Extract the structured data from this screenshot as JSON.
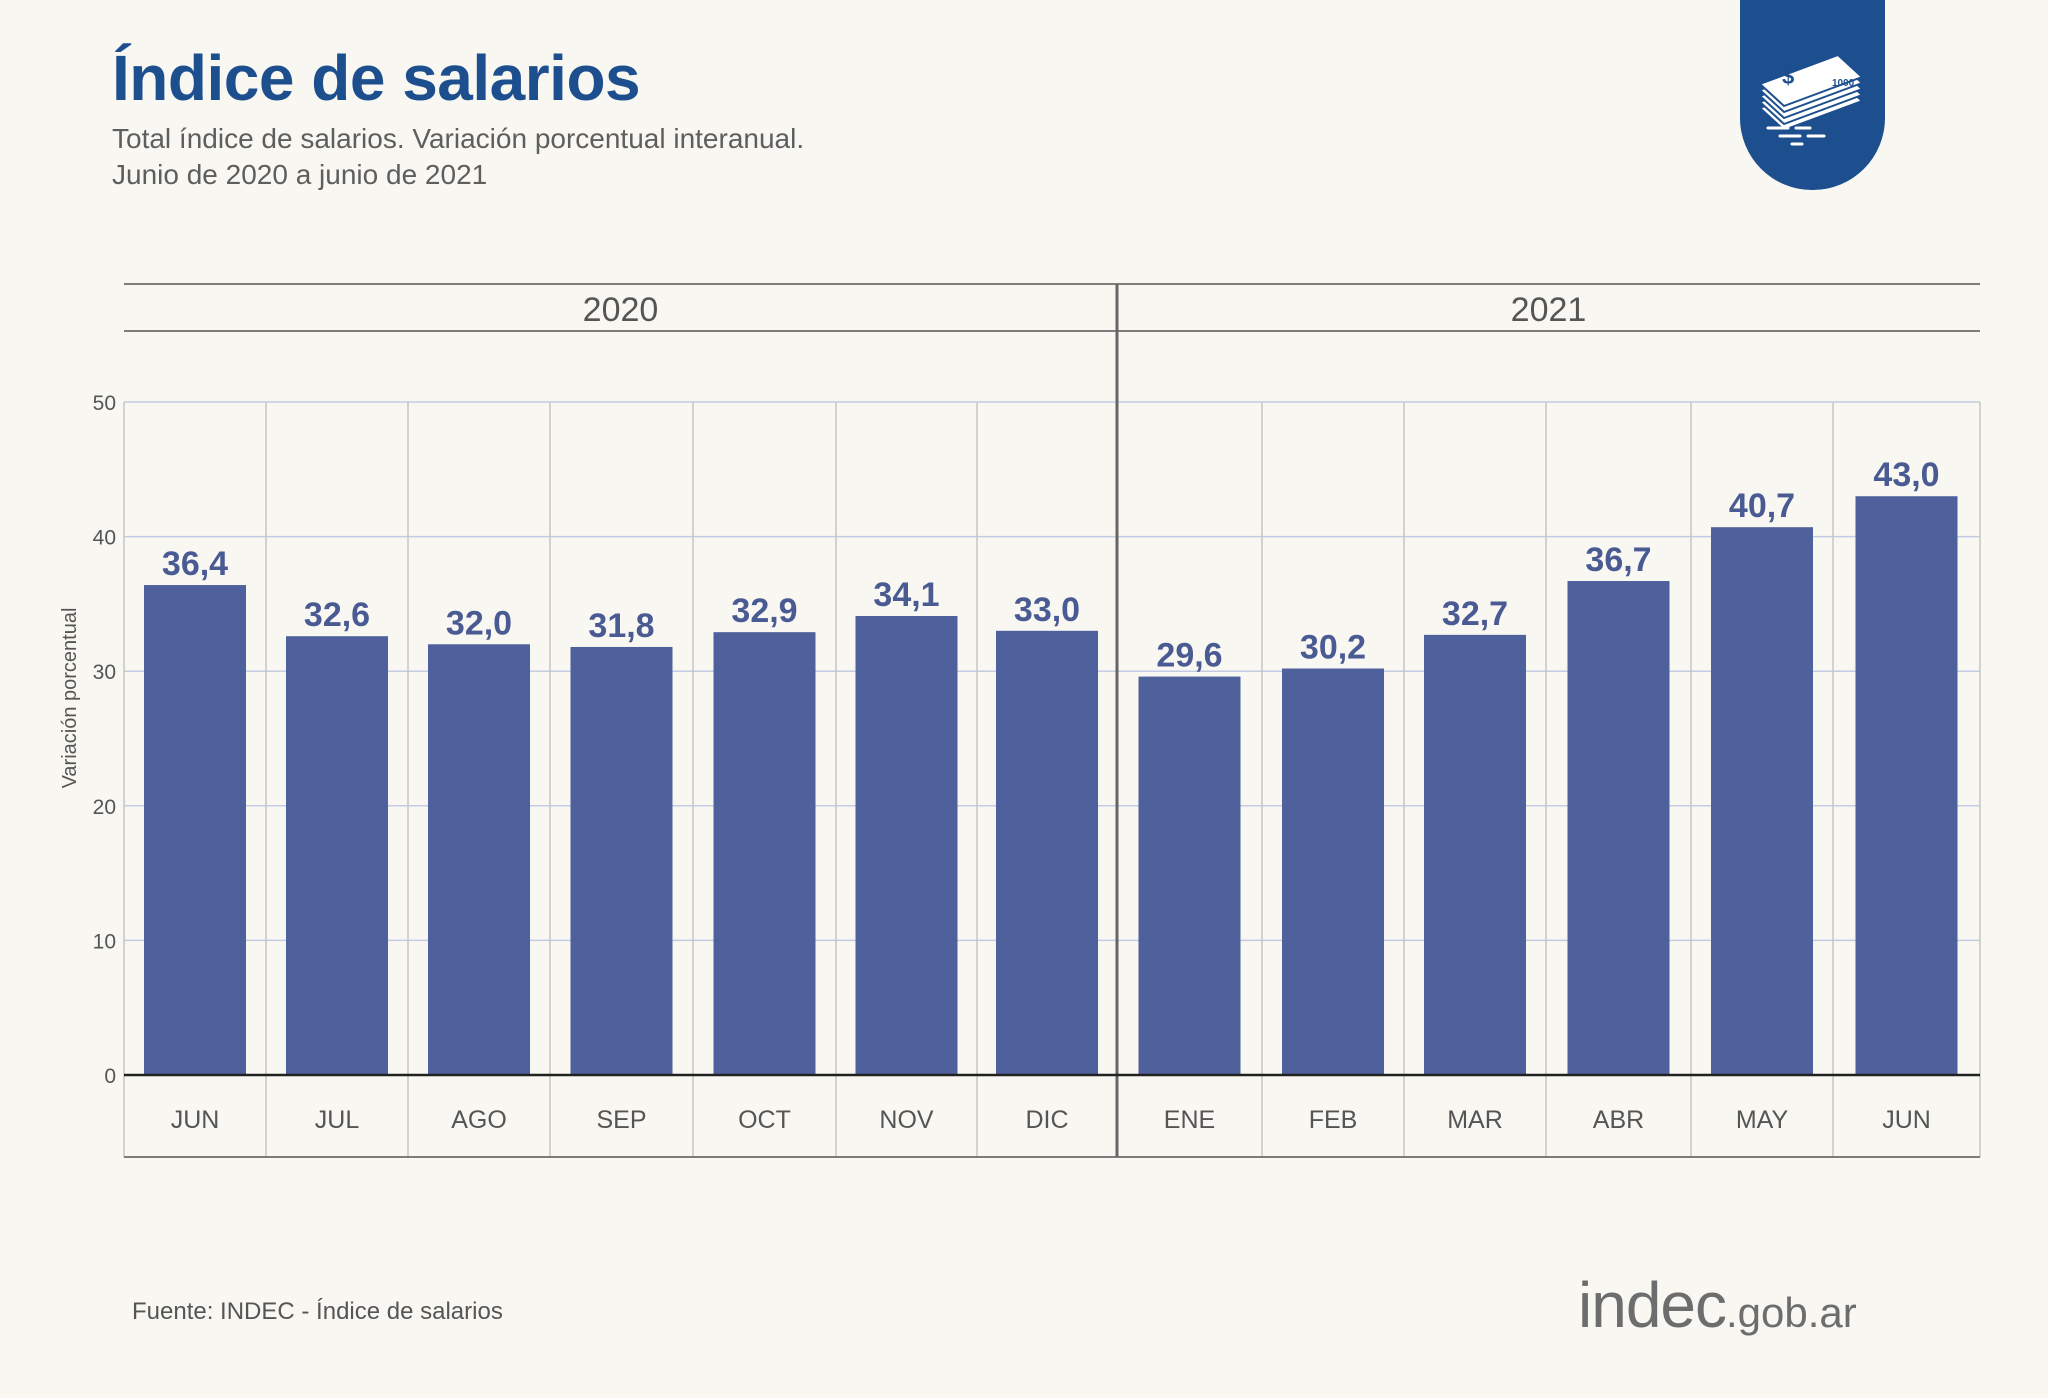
{
  "header": {
    "title": "Índice de salarios",
    "subtitle_line1": "Total índice de salarios. Variación porcentual interanual.",
    "subtitle_line2": "Junio de 2020 a junio de 2021"
  },
  "footer": {
    "source": "Fuente: INDEC - Índice de salarios",
    "logo_main": "indec",
    "logo_suffix": ".gob.ar"
  },
  "badge": {
    "icon": "money-stack-icon",
    "currency_symbol": "$",
    "note_value": "1000"
  },
  "colors": {
    "bar": "#4f619c",
    "value_label": "#4a5a93",
    "title": "#1d4f8f",
    "grid": "#c4cbe4",
    "background": "#f8f7f1"
  },
  "chart_data": {
    "type": "bar",
    "title": "Índice de salarios",
    "ylabel": "Variación porcentual",
    "xlabel": "",
    "ylim": [
      0,
      50
    ],
    "yticks": [
      0,
      10,
      20,
      30,
      40,
      50
    ],
    "grid": true,
    "year_groups": [
      {
        "label": "2020",
        "count": 7
      },
      {
        "label": "2021",
        "count": 6
      }
    ],
    "categories": [
      "JUN",
      "JUL",
      "AGO",
      "SEP",
      "OCT",
      "NOV",
      "DIC",
      "ENE",
      "FEB",
      "MAR",
      "ABR",
      "MAY",
      "JUN"
    ],
    "values": [
      36.4,
      32.6,
      32.0,
      31.8,
      32.9,
      34.1,
      33.0,
      29.6,
      30.2,
      32.7,
      36.7,
      40.7,
      43.0
    ],
    "value_labels": [
      "36,4",
      "32,6",
      "32,0",
      "31,8",
      "32,9",
      "34,1",
      "33,0",
      "29,6",
      "30,2",
      "32,7",
      "36,7",
      "40,7",
      "43,0"
    ]
  }
}
